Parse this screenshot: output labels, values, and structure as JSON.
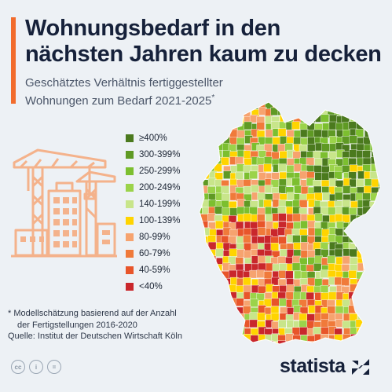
{
  "header": {
    "title_line1": "Wohnungsbedarf in den",
    "title_line2": "nächsten Jahren kaum zu decken",
    "subtitle_line1": "Geschätztes Verhältnis fertiggestellter",
    "subtitle_line2": "Wohnungen zum Bedarf 2021-2025",
    "subtitle_mark": "*"
  },
  "legend": [
    {
      "label": "≥400%",
      "color": "#4b7a1e"
    },
    {
      "label": "300-399%",
      "color": "#5f9a24"
    },
    {
      "label": "250-299%",
      "color": "#7cbf2f"
    },
    {
      "label": "200-249%",
      "color": "#9bd34a"
    },
    {
      "label": "140-199%",
      "color": "#c8e58a"
    },
    {
      "label": "100-139%",
      "color": "#ffd400"
    },
    {
      "label": "80-99%",
      "color": "#f6a36f"
    },
    {
      "label": "60-79%",
      "color": "#f07a3a"
    },
    {
      "label": "40-59%",
      "color": "#e8552a"
    },
    {
      "label": "<40%",
      "color": "#c9272c"
    }
  ],
  "footnote": {
    "line1": "* Modellschätzung basierend auf der Anzahl",
    "line2": "der Fertigstellungen 2016-2020",
    "source": "Quelle: Institut der Deutschen Wirtschaft Köln"
  },
  "license_icons": {
    "cc": "cc",
    "by": "i",
    "nd": "="
  },
  "brand": {
    "name": "statista"
  },
  "colors": {
    "accent": "#f26c2d",
    "illustration": "#f4b28b"
  }
}
